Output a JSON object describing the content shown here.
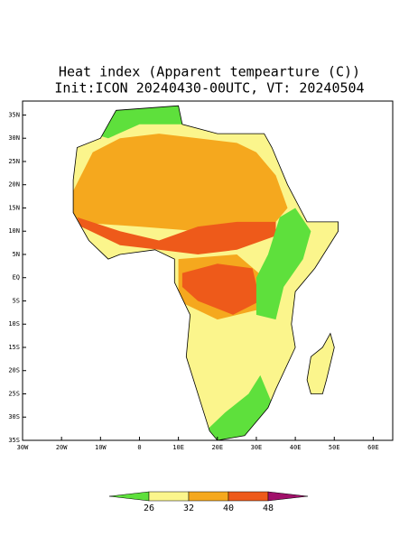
{
  "map": {
    "title": "Heat index (Apparent tempearture (C))",
    "subtitle": "Init:ICON 20240430-00UTC, VT: 20240504",
    "lonlim": [
      -30,
      65
    ],
    "latlim": [
      -35,
      38
    ],
    "latticks": [
      {
        "value": 35,
        "label": "35N"
      },
      {
        "value": 30,
        "label": "30N"
      },
      {
        "value": 25,
        "label": "25N"
      },
      {
        "value": 20,
        "label": "20N"
      },
      {
        "value": 15,
        "label": "15N"
      },
      {
        "value": 10,
        "label": "10N"
      },
      {
        "value": 5,
        "label": "5N"
      },
      {
        "value": 0,
        "label": "EQ"
      },
      {
        "value": -5,
        "label": "5S"
      },
      {
        "value": -10,
        "label": "10S"
      },
      {
        "value": -15,
        "label": "15S"
      },
      {
        "value": -20,
        "label": "20S"
      },
      {
        "value": -25,
        "label": "25S"
      },
      {
        "value": -30,
        "label": "30S"
      },
      {
        "value": -35,
        "label": "35S"
      }
    ],
    "lonticks": [
      {
        "value": -30,
        "label": "30W"
      },
      {
        "value": -20,
        "label": "20W"
      },
      {
        "value": -10,
        "label": "10W"
      },
      0,
      {
        "value": 10,
        "label": "10E"
      },
      {
        "value": 20,
        "label": "20E"
      },
      {
        "value": 30,
        "label": "30E"
      },
      {
        "value": 40,
        "label": "40E"
      },
      {
        "value": 50,
        "label": "50E"
      },
      {
        "value": 60,
        "label": "60E"
      }
    ],
    "colorbar": {
      "levels": [
        26,
        32,
        40,
        48
      ],
      "colors": [
        "#5ee03c",
        "#fbf58c",
        "#f5a81e",
        "#ee5a1a",
        "#a0106a"
      ]
    }
  }
}
